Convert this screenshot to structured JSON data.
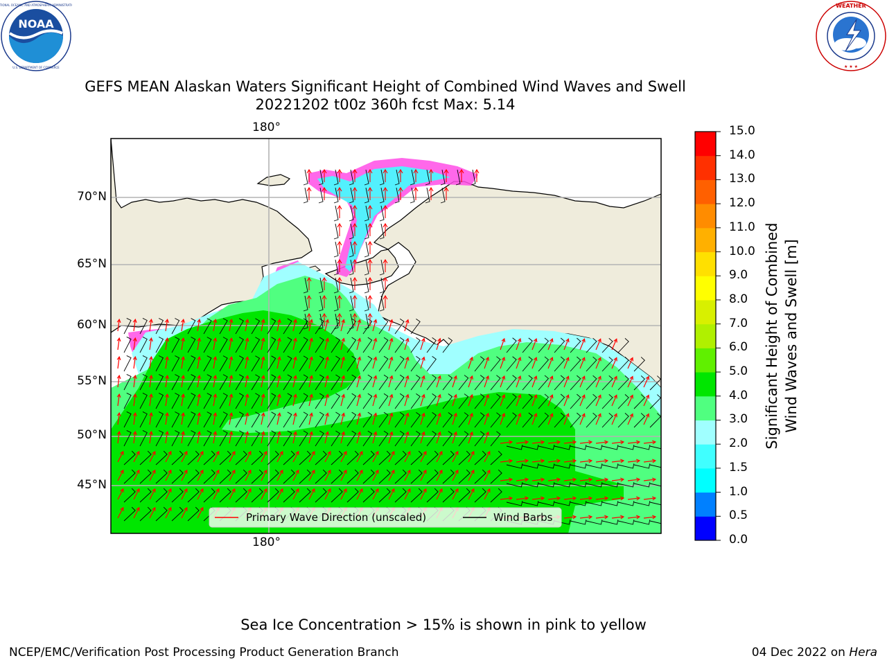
{
  "header": {
    "title_line1": "GEFS MEAN Alaskan Waters Significant Height of Combined Wind Waves and Swell",
    "title_line2": "20221202 t00z 360h fcst   Max: 5.14"
  },
  "logos": {
    "left": {
      "text": "NOAA",
      "ring_text": "NATIONAL OCEANIC AND ATMOSPHERIC ADMINISTRATION · U.S. DEPARTMENT OF COMMERCE"
    },
    "right": {
      "ring_text": "NATIONAL WEATHER SERVICE"
    }
  },
  "map": {
    "lon_label_top": "180°",
    "lon_label_bottom": "180°",
    "lat_labels": [
      "70°N",
      "65°N",
      "60°N",
      "55°N",
      "50°N",
      "45°N"
    ],
    "colors": {
      "land": "#efecdc",
      "grid": "#b3b3b3",
      "arrow": "#ff0000",
      "barb": "#000000"
    }
  },
  "legend": {
    "items": [
      {
        "label": "Primary Wave Direction (unscaled)",
        "color": "#ff0000"
      },
      {
        "label": "Wind Barbs",
        "color": "#000000"
      }
    ]
  },
  "colorbar": {
    "title_line1": "Significant Height of Combined",
    "title_line2": "Wind Waves and Swell [m]",
    "tick_labels": [
      "0.0",
      "0.5",
      "1.0",
      "1.5",
      "2.0",
      "3.0",
      "4.0",
      "5.0",
      "6.0",
      "7.0",
      "8.0",
      "9.0",
      "10.0",
      "11.0",
      "12.0",
      "13.0",
      "14.0",
      "15.0"
    ],
    "colors": [
      "#0000ff",
      "#0080ff",
      "#00ffff",
      "#40ffff",
      "#a0ffff",
      "#50ff80",
      "#00e600",
      "#60f000",
      "#b0f000",
      "#d8f000",
      "#ffff00",
      "#ffe000",
      "#ffb000",
      "#ff8c00",
      "#ff6000",
      "#ff3000",
      "#ff0000"
    ]
  },
  "footnote": "Sea Ice Concentration > 15% is shown in pink to yellow",
  "footer": {
    "left": "NCEP/EMC/Verification Post Processing Product Generation Branch",
    "right_date": "04 Dec 2022 on",
    "right_host": "Hera"
  }
}
